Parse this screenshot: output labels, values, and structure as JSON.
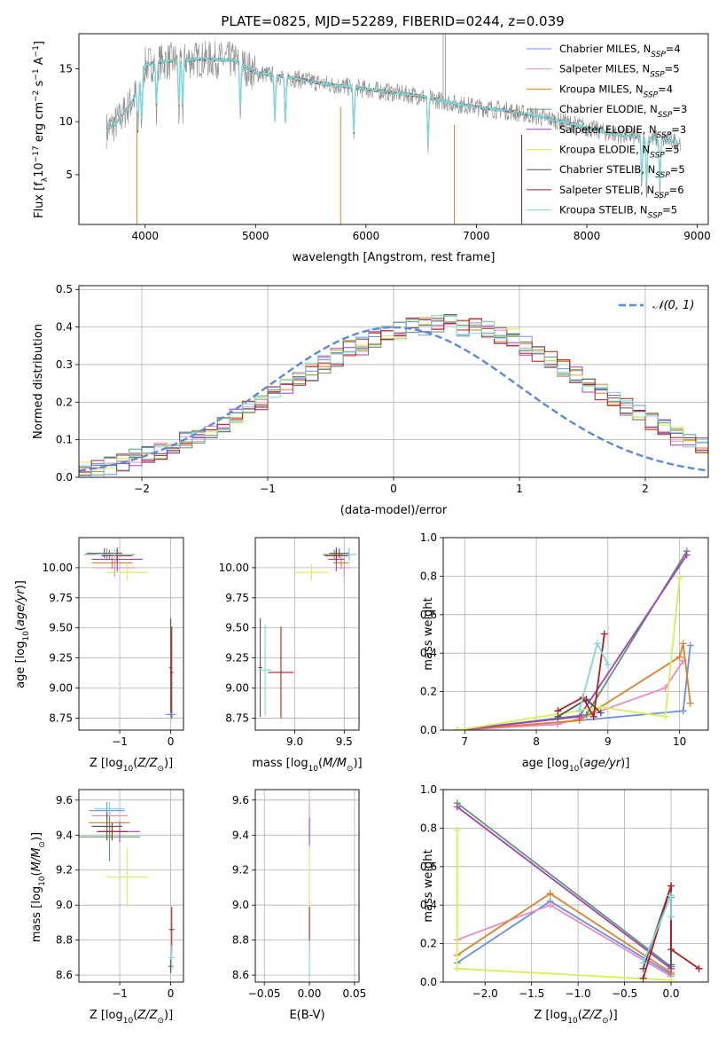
{
  "title": "PLATE=0825, MJD=52289, FIBERID=0244, z=0.039",
  "colors": {
    "chabrier_miles": "#6a8ee6",
    "salpeter_miles": "#e98ac3",
    "kroupa_miles": "#e0802a",
    "chabrier_elodie": "#5a9a6a",
    "salpeter_elodie": "#a33fc0",
    "kroupa_elodie": "#d6ef55",
    "chabrier_stelib": "#555555",
    "salpeter_stelib": "#b51c1c",
    "kroupa_stelib": "#7ed8dd",
    "data": "#8a8a8a",
    "normal": "#5b8bd6"
  },
  "chart_data": [
    {
      "type": "line",
      "id": "spectrum",
      "xlabel": "wavelength [Angstrom, rest frame]",
      "ylabel": "Flux [f_λ 10^-17 erg cm^-2 s^-1 A^-1]",
      "xlim": [
        3400,
        9100
      ],
      "ylim": [
        0.3,
        18.3
      ],
      "xticks": [
        4000,
        5000,
        6000,
        7000,
        8000,
        9000
      ],
      "yticks": [
        5,
        10,
        15
      ],
      "grid": false,
      "legend_position": "top-right",
      "legend": [
        "Chabrier MILES, N_SSP=4",
        "Salpeter MILES, N_SSP=5",
        "Kroupa MILES, N_SSP=4",
        "Chabrier ELODIE, N_SSP=3",
        "Salpeter ELODIE, N_SSP=3",
        "Kroupa ELODIE, N_SSP=5",
        "Chabrier STELIB, N_SSP=5",
        "Salpeter STELIB, N_SSP=6",
        "Kroupa STELIB, N_SSP=5"
      ],
      "continuum": {
        "x": [
          3650,
          3750,
          3900,
          4000,
          4100,
          4300,
          4500,
          4800,
          5000,
          5300,
          5600,
          5900,
          6200,
          6500,
          6800,
          7000,
          7300,
          7600,
          7900,
          8200,
          8500,
          8850
        ],
        "y": [
          9.2,
          10.0,
          12.2,
          15.3,
          15.6,
          15.8,
          15.9,
          15.8,
          14.6,
          14.2,
          13.6,
          13.2,
          12.8,
          12.4,
          11.7,
          11.4,
          11.0,
          10.4,
          9.7,
          8.9,
          8.5,
          8.1
        ]
      },
      "absorption_lines": [
        3934,
        3969,
        4102,
        4305,
        4340,
        4861,
        5175,
        5270,
        5890,
        6563,
        8498,
        8542,
        8662
      ],
      "dropouts": [
        {
          "x": 3925,
          "to": 0.3
        },
        {
          "x": 5770,
          "to": 0.3
        },
        {
          "x": 6800,
          "to": 0.3
        },
        {
          "x": 7410,
          "to": 0.3
        }
      ],
      "data_spikes": [
        6700,
        6720
      ]
    },
    {
      "type": "line",
      "id": "residual_histogram",
      "xlabel": "(data-model)/error",
      "ylabel": "Normed distribution",
      "xlim": [
        -2.5,
        2.5
      ],
      "ylim": [
        0,
        0.51
      ],
      "xticks": [
        -2,
        -1,
        0,
        1,
        2
      ],
      "yticks": [
        0.0,
        0.1,
        0.2,
        0.3,
        0.4,
        0.5
      ],
      "grid": true,
      "legend_position": "top-right",
      "legend": [
        "𝒩(0, 1)"
      ],
      "bin_width": 0.1,
      "hist_base": [
        0.02,
        0.02,
        0.03,
        0.04,
        0.05,
        0.06,
        0.07,
        0.08,
        0.1,
        0.11,
        0.12,
        0.14,
        0.16,
        0.18,
        0.2,
        0.22,
        0.24,
        0.26,
        0.28,
        0.3,
        0.32,
        0.34,
        0.35,
        0.37,
        0.38,
        0.39,
        0.4,
        0.4,
        0.41,
        0.41,
        0.4,
        0.4,
        0.39,
        0.38,
        0.37,
        0.35,
        0.33,
        0.31,
        0.29,
        0.27,
        0.25,
        0.23,
        0.21,
        0.19,
        0.17,
        0.15,
        0.13,
        0.11,
        0.1,
        0.08
      ]
    },
    {
      "type": "scatter",
      "id": "age_vs_Z",
      "xlabel": "Z [log10(Z/Z⊙)]",
      "ylabel": "age  [log10(age/yr)]",
      "xlim": [
        -1.8,
        0.25
      ],
      "ylim": [
        8.65,
        10.25
      ],
      "xticks": [
        -1,
        0
      ],
      "yticks": [
        8.75,
        9.0,
        9.25,
        9.5,
        9.75,
        10.0
      ],
      "xticklabels": [
        "−1",
        "0"
      ],
      "yticklabels": [
        "8.75",
        "9.00",
        "9.25",
        "9.50",
        "9.75",
        "10.00"
      ],
      "grid": true,
      "points": [
        {
          "s": "chabrier_miles",
          "x": -1.25,
          "xe": 0.35,
          "y": 10.11,
          "ye": 0.05
        },
        {
          "s": "salpeter_miles",
          "x": -1.1,
          "xe": 0.4,
          "y": 10.0,
          "ye": 0.08
        },
        {
          "s": "kroupa_miles",
          "x": -1.15,
          "xe": 0.4,
          "y": 10.04,
          "ye": 0.05
        },
        {
          "s": "chabrier_elodie",
          "x": -1.2,
          "xe": 0.5,
          "y": 10.11,
          "ye": 0.04
        },
        {
          "s": "salpeter_elodie",
          "x": -1.05,
          "xe": 0.5,
          "y": 10.07,
          "ye": 0.1
        },
        {
          "s": "kroupa_elodie",
          "x": -0.85,
          "xe": 0.4,
          "y": 9.96,
          "ye": 0.07
        },
        {
          "s": "chabrier_stelib",
          "x": -1.3,
          "xe": 0.35,
          "y": 10.12,
          "ye": 0.04
        },
        {
          "s": "salpeter_stelib",
          "x": -1.05,
          "xe": 0.3,
          "y": 10.1,
          "ye": 0.05
        },
        {
          "s": "kroupa_stelib",
          "x": -1.1,
          "xe": 0.35,
          "y": 10.11,
          "ye": 0.05
        },
        {
          "s": "chabrier_stelib",
          "x": 0.0,
          "xe": 0.03,
          "y": 9.17,
          "ye": 0.41
        },
        {
          "s": "salpeter_stelib",
          "x": 0.02,
          "xe": 0.03,
          "y": 9.13,
          "ye": 0.38
        },
        {
          "s": "kroupa_stelib",
          "x": 0.0,
          "xe": 0.12,
          "y": 8.78,
          "ye": 0.02
        },
        {
          "s": "chabrier_miles",
          "x": 0.0,
          "xe": 0.08,
          "y": 8.78,
          "ye": 0.02
        }
      ]
    },
    {
      "type": "scatter",
      "id": "age_vs_mass",
      "xlabel": "mass [log10(M/M⊙)]",
      "ylabel": "",
      "xlim": [
        8.6,
        9.65
      ],
      "ylim": [
        8.65,
        10.25
      ],
      "xticks": [
        9.0,
        9.5
      ],
      "yticks": [
        8.75,
        9.0,
        9.25,
        9.5,
        9.75,
        10.0
      ],
      "xticklabels": [
        "9.0",
        "9.5"
      ],
      "yticklabels": [
        "8.75",
        "9.00",
        "9.25",
        "9.50",
        "9.75",
        "10.00"
      ],
      "grid": true,
      "points": [
        {
          "s": "chabrier_miles",
          "x": 9.55,
          "xe": 0.07,
          "y": 10.11,
          "ye": 0.05
        },
        {
          "s": "salpeter_miles",
          "x": 9.5,
          "xe": 0.07,
          "y": 10.0,
          "ye": 0.08
        },
        {
          "s": "kroupa_miles",
          "x": 9.47,
          "xe": 0.08,
          "y": 10.04,
          "ye": 0.05
        },
        {
          "s": "chabrier_elodie",
          "x": 9.4,
          "xe": 0.12,
          "y": 10.11,
          "ye": 0.04
        },
        {
          "s": "salpeter_elodie",
          "x": 9.42,
          "xe": 0.08,
          "y": 10.07,
          "ye": 0.1
        },
        {
          "s": "kroupa_elodie",
          "x": 9.17,
          "xe": 0.17,
          "y": 9.96,
          "ye": 0.07
        },
        {
          "s": "chabrier_stelib",
          "x": 9.45,
          "xe": 0.1,
          "y": 10.12,
          "ye": 0.04
        },
        {
          "s": "salpeter_stelib",
          "x": 9.42,
          "xe": 0.12,
          "y": 10.1,
          "ye": 0.05
        },
        {
          "s": "kroupa_stelib",
          "x": 9.55,
          "xe": 0.06,
          "y": 10.11,
          "ye": 0.05
        },
        {
          "s": "chabrier_stelib",
          "x": 8.65,
          "xe": 0.02,
          "y": 9.17,
          "ye": 0.41
        },
        {
          "s": "salpeter_stelib",
          "x": 8.86,
          "xe": 0.13,
          "y": 9.13,
          "ye": 0.38
        },
        {
          "s": "kroupa_stelib",
          "x": 8.7,
          "xe": 0.07,
          "y": 9.15,
          "ye": 0.38
        }
      ]
    },
    {
      "type": "line",
      "id": "mass_weight_vs_age",
      "xlabel": "age  [log10(age/yr)]",
      "ylabel": "mass weight",
      "xlim": [
        6.7,
        10.4
      ],
      "ylim": [
        0.0,
        1.0
      ],
      "xticks": [
        7,
        8,
        9,
        10
      ],
      "yticks": [
        0.0,
        0.2,
        0.4,
        0.6,
        0.8,
        1.0
      ],
      "grid": true,
      "series": [
        {
          "name": "Chabrier MILES",
          "s": "chabrier_miles",
          "x": [
            6.9,
            8.3,
            10.05,
            10.15
          ],
          "y": [
            0.0,
            0.04,
            0.1,
            0.44
          ]
        },
        {
          "name": "Salpeter MILES",
          "s": "salpeter_miles",
          "x": [
            6.9,
            8.3,
            8.6,
            9.8,
            10.05
          ],
          "y": [
            0.0,
            0.03,
            0.06,
            0.22,
            0.36
          ]
        },
        {
          "name": "Kroupa MILES",
          "s": "kroupa_miles",
          "x": [
            6.9,
            8.6,
            10.0,
            10.05,
            10.15
          ],
          "y": [
            0.0,
            0.05,
            0.38,
            0.45,
            0.14
          ]
        },
        {
          "name": "Chabrier ELODIE",
          "s": "chabrier_elodie",
          "x": [
            6.9,
            8.7,
            10.1
          ],
          "y": [
            0.0,
            0.08,
            0.93
          ]
        },
        {
          "name": "Salpeter ELODIE",
          "s": "salpeter_elodie",
          "x": [
            6.9,
            8.6,
            10.1
          ],
          "y": [
            0.0,
            0.07,
            0.91
          ]
        },
        {
          "name": "Kroupa ELODIE",
          "s": "kroupa_elodie",
          "x": [
            6.9,
            8.9,
            9.8,
            10.0
          ],
          "y": [
            0.0,
            0.12,
            0.07,
            0.79
          ]
        },
        {
          "name": "Chabrier STELIB",
          "s": "chabrier_stelib",
          "x": [
            8.3,
            8.7,
            8.9
          ],
          "y": [
            0.07,
            0.16,
            0.09
          ]
        },
        {
          "name": "Salpeter STELIB",
          "s": "salpeter_stelib",
          "x": [
            8.3,
            8.65,
            8.8,
            8.95
          ],
          "y": [
            0.1,
            0.17,
            0.07,
            0.5
          ]
        },
        {
          "name": "Kroupa STELIB",
          "s": "kroupa_stelib",
          "x": [
            8.6,
            8.85,
            9.0
          ],
          "y": [
            0.1,
            0.45,
            0.34
          ]
        }
      ]
    },
    {
      "type": "scatter",
      "id": "mass_vs_Z",
      "xlabel": "Z [log10(Z/Z⊙)]",
      "ylabel": "mass [log10(M/M⊙)]",
      "xlim": [
        -1.8,
        0.25
      ],
      "ylim": [
        8.56,
        9.66
      ],
      "xticks": [
        -1,
        0
      ],
      "yticks": [
        8.6,
        8.8,
        9.0,
        9.2,
        9.4,
        9.6
      ],
      "xticklabels": [
        "−1",
        "0"
      ],
      "yticklabels": [
        "8.6",
        "8.8",
        "9.0",
        "9.2",
        "9.4",
        "9.6"
      ],
      "grid": true,
      "points": [
        {
          "s": "chabrier_miles",
          "x": -1.25,
          "xe": 0.35,
          "y": 9.54,
          "ye": 0.05
        },
        {
          "s": "salpeter_miles",
          "x": -1.2,
          "xe": 0.35,
          "y": 9.51,
          "ye": 0.04
        },
        {
          "s": "kroupa_miles",
          "x": -1.2,
          "xe": 0.4,
          "y": 9.47,
          "ye": 0.07
        },
        {
          "s": "chabrier_elodie",
          "x": -1.2,
          "xe": 0.6,
          "y": 9.39,
          "ye": 0.14
        },
        {
          "s": "salpeter_elodie",
          "x": -1.0,
          "xe": 0.4,
          "y": 9.42,
          "ye": 0.06
        },
        {
          "s": "kroupa_elodie",
          "x": -0.85,
          "xe": 0.4,
          "y": 9.16,
          "ye": 0.17
        },
        {
          "s": "chabrier_stelib",
          "x": -1.25,
          "xe": 0.3,
          "y": 9.45,
          "ye": 0.08
        },
        {
          "s": "salpeter_stelib",
          "x": -1.15,
          "xe": 0.3,
          "y": 9.42,
          "ye": 0.05
        },
        {
          "s": "kroupa_stelib",
          "x": -1.2,
          "xe": 0.3,
          "y": 9.55,
          "ye": 0.04
        },
        {
          "s": "salpeter_stelib",
          "x": 0.02,
          "xe": 0.05,
          "y": 8.86,
          "ye": 0.13
        },
        {
          "s": "chabrier_stelib",
          "x": 0.0,
          "xe": 0.05,
          "y": 8.65,
          "ye": 0.04
        },
        {
          "s": "kroupa_stelib",
          "x": 0.02,
          "xe": 0.06,
          "y": 8.7,
          "ye": 0.07
        }
      ]
    },
    {
      "type": "scatter",
      "id": "mass_vs_ebv",
      "xlabel": "E(B-V)",
      "ylabel": "",
      "xlim": [
        -0.06,
        0.055
      ],
      "ylim": [
        8.56,
        9.66
      ],
      "xticks": [
        -0.05,
        0.0,
        0.05
      ],
      "yticks": [
        8.6,
        8.8,
        9.0,
        9.2,
        9.4,
        9.6
      ],
      "xticklabels": [
        "−0.05",
        "0.00",
        "0.05"
      ],
      "yticklabels": [
        "8.6",
        "8.8",
        "9.0",
        "9.2",
        "9.4",
        "9.6"
      ],
      "grid": true,
      "points": [
        {
          "s": "salpeter_miles",
          "x": 0.0,
          "xe": 0.0,
          "y": 9.5,
          "ye": 0.1
        },
        {
          "s": "salpeter_elodie",
          "x": 0.0,
          "xe": 0.0,
          "y": 9.42,
          "ye": 0.08
        },
        {
          "s": "kroupa_elodie",
          "x": 0.0,
          "xe": 0.0,
          "y": 9.16,
          "ye": 0.17
        },
        {
          "s": "salpeter_stelib",
          "x": 0.0,
          "xe": 0.0,
          "y": 8.86,
          "ye": 0.13
        },
        {
          "s": "kroupa_stelib",
          "x": 0.0,
          "xe": 0.0,
          "y": 8.7,
          "ye": 0.1
        }
      ]
    },
    {
      "type": "line",
      "id": "mass_weight_vs_Z",
      "xlabel": "Z [log10(Z/Z⊙)]",
      "ylabel": "mass weight",
      "xlim": [
        -2.45,
        0.4
      ],
      "ylim": [
        0.0,
        1.0
      ],
      "xticks": [
        -2.0,
        -1.5,
        -1.0,
        -0.5,
        0.0
      ],
      "xticklabels": [
        "−2.0",
        "−1.5",
        "−1.0",
        "−0.5",
        "0.0"
      ],
      "yticks": [
        0.0,
        0.2,
        0.4,
        0.6,
        0.8,
        1.0
      ],
      "grid": true,
      "series": [
        {
          "name": "Chabrier MILES",
          "s": "chabrier_miles",
          "x": [
            -2.3,
            -1.3,
            0.0,
            0.0
          ],
          "y": [
            0.1,
            0.42,
            0.04,
            0.44
          ]
        },
        {
          "name": "Salpeter MILES",
          "s": "salpeter_miles",
          "x": [
            -2.3,
            -1.3,
            0.0
          ],
          "y": [
            0.22,
            0.4,
            0.03
          ]
        },
        {
          "name": "Kroupa MILES",
          "s": "kroupa_miles",
          "x": [
            -2.3,
            -1.3,
            0.0
          ],
          "y": [
            0.14,
            0.46,
            0.05
          ]
        },
        {
          "name": "Chabrier ELODIE",
          "s": "chabrier_elodie",
          "x": [
            -2.3,
            0.0
          ],
          "y": [
            0.93,
            0.08
          ]
        },
        {
          "name": "Salpeter ELODIE",
          "s": "salpeter_elodie",
          "x": [
            -2.3,
            0.0
          ],
          "y": [
            0.91,
            0.07
          ]
        },
        {
          "name": "Kroupa ELODIE",
          "s": "kroupa_elodie",
          "x": [
            -2.3,
            -2.3,
            0.0
          ],
          "y": [
            0.79,
            0.07,
            0.01
          ]
        },
        {
          "name": "Chabrier STELIB",
          "s": "chabrier_stelib",
          "x": [
            -0.3,
            0.0,
            0.0
          ],
          "y": [
            0.07,
            0.5,
            0.09
          ]
        },
        {
          "name": "Salpeter STELIB",
          "s": "salpeter_stelib",
          "x": [
            -0.3,
            0.0,
            0.0,
            0.3
          ],
          "y": [
            0.02,
            0.5,
            0.17,
            0.07
          ]
        },
        {
          "name": "Kroupa STELIB",
          "s": "kroupa_stelib",
          "x": [
            -0.3,
            0.0,
            0.0
          ],
          "y": [
            0.1,
            0.45,
            0.34
          ]
        }
      ]
    }
  ]
}
